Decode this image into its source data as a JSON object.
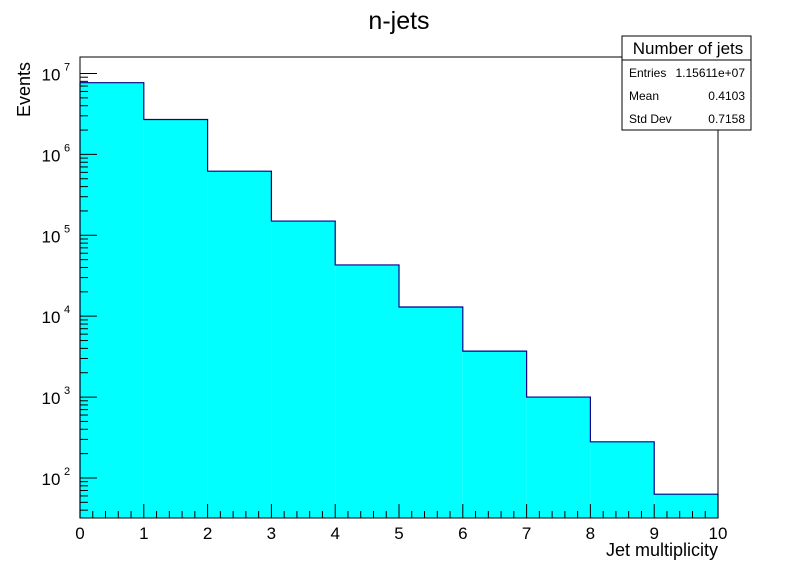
{
  "chart_data": {
    "type": "bar",
    "title": "n-jets",
    "xlabel": "Jet multiplicity",
    "ylabel": "Events",
    "xlim": [
      0,
      10
    ],
    "ylim": [
      32,
      16000000
    ],
    "yscale": "log",
    "bin_edges": [
      0,
      1,
      2,
      3,
      4,
      5,
      6,
      7,
      8,
      9,
      10
    ],
    "values": [
      7700000,
      2700000,
      620000,
      150000,
      43000,
      13000,
      3700,
      1000,
      280,
      63
    ],
    "fill_color": "#00ffff",
    "line_color": "#00008b",
    "x_ticks": [
      "0",
      "1",
      "2",
      "3",
      "4",
      "5",
      "6",
      "7",
      "8",
      "9",
      "10"
    ],
    "y_ticks": [
      {
        "value": 100,
        "label": "10",
        "exp": "2"
      },
      {
        "value": 1000,
        "label": "10",
        "exp": "3"
      },
      {
        "value": 10000,
        "label": "10",
        "exp": "4"
      },
      {
        "value": 100000,
        "label": "10",
        "exp": "5"
      },
      {
        "value": 1000000,
        "label": "10",
        "exp": "6"
      },
      {
        "value": 10000000,
        "label": "10",
        "exp": "7"
      }
    ],
    "stats_box": {
      "title": "Number of jets",
      "rows": [
        {
          "label": "Entries",
          "value": "1.15611e+07"
        },
        {
          "label": "Mean",
          "value": "0.4103"
        },
        {
          "label": "Std Dev",
          "value": "0.7158"
        }
      ]
    }
  }
}
